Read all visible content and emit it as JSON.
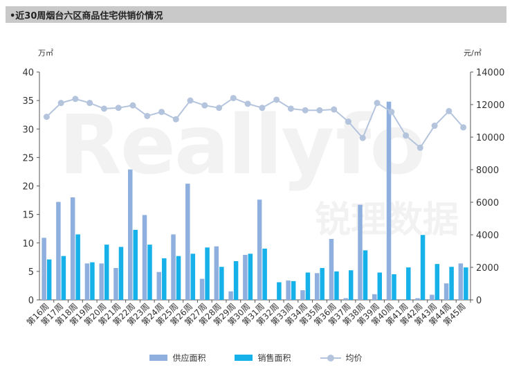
{
  "header": {
    "title": "•近30周烟台六区商品住宅供销价情况"
  },
  "colors": {
    "supply": "#8fb0de",
    "sales": "#16b1e9",
    "price": "#b4c4dd",
    "axis": "#555555",
    "title_bg": "#c9c9c9"
  },
  "chart_data": {
    "type": "bar",
    "left_unit": "万㎡",
    "right_unit": "元/㎡",
    "ylim_left": [
      0,
      40
    ],
    "yticks_left": [
      0,
      5,
      10,
      15,
      20,
      25,
      30,
      35,
      40
    ],
    "ylim_right": [
      0,
      14000
    ],
    "yticks_right": [
      0,
      2000,
      4000,
      6000,
      8000,
      10000,
      12000,
      14000
    ],
    "grid": false,
    "legend_position": "bottom",
    "categories": [
      "第16周",
      "第17周",
      "第18周",
      "第19周",
      "第20周",
      "第21周",
      "第22周",
      "第23周",
      "第24周",
      "第25周",
      "第26周",
      "第27周",
      "第28周",
      "第29周",
      "第30周",
      "第31周",
      "第32周",
      "第33周",
      "第34周",
      "第35周",
      "第36周",
      "第37周",
      "第38周",
      "第39周",
      "第40周",
      "第41周",
      "第42周",
      "第43周",
      "第44周",
      "第45周"
    ],
    "series": [
      {
        "name": "供应面积",
        "type": "bar",
        "axis": "left",
        "values": [
          10.9,
          17.2,
          18.0,
          6.4,
          6.4,
          5.6,
          22.9,
          14.9,
          4.9,
          11.5,
          20.4,
          3.7,
          9.4,
          1.5,
          7.9,
          17.6,
          0,
          3.4,
          1.7,
          4.7,
          10.7,
          0.3,
          16.7,
          1.0,
          34.8,
          0,
          0.3,
          0.9,
          2.9,
          6.4
        ]
      },
      {
        "name": "销售面积",
        "type": "bar",
        "axis": "left",
        "values": [
          7.1,
          7.7,
          11.5,
          6.6,
          9.7,
          9.3,
          12.3,
          9.7,
          7.3,
          7.7,
          8.1,
          9.2,
          5.8,
          6.8,
          8.1,
          9.0,
          3.1,
          3.3,
          4.8,
          5.6,
          5.0,
          5.2,
          8.7,
          4.8,
          4.5,
          5.7,
          11.4,
          6.3,
          5.8,
          5.7
        ]
      },
      {
        "name": "均价",
        "type": "line",
        "axis": "right",
        "values": [
          11250,
          12100,
          12350,
          12100,
          11750,
          11800,
          11950,
          11300,
          11550,
          11100,
          12250,
          11950,
          11800,
          12400,
          12050,
          11800,
          12300,
          11750,
          11650,
          11650,
          11700,
          10950,
          9950,
          12100,
          11550,
          10100,
          9350,
          10700,
          11600,
          10600
        ]
      }
    ]
  }
}
